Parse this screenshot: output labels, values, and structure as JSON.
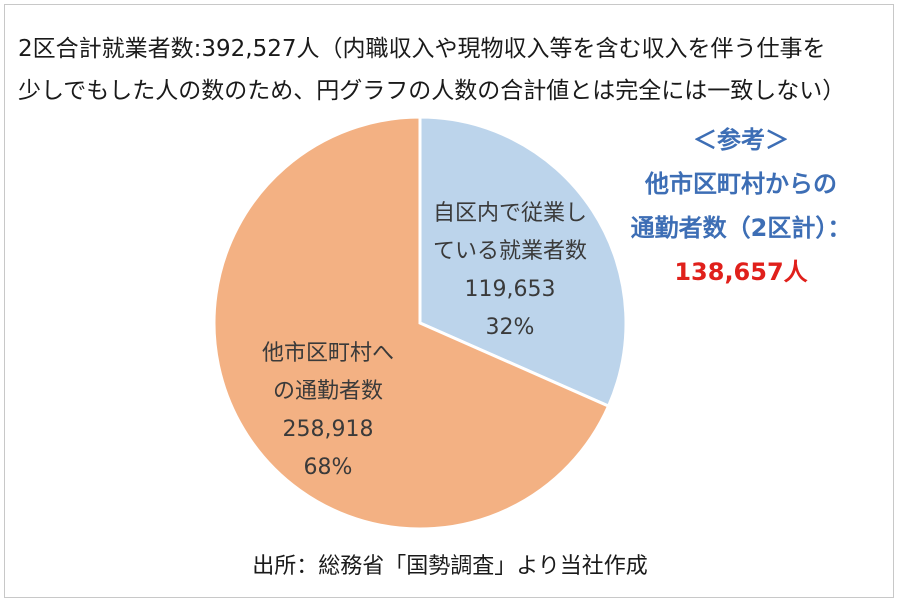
{
  "header": {
    "line1": "2区合計就業者数:392,527人（内職収入や現物収入等を含む収入を伴う仕事を",
    "line2": "少しでもした人の数のため、円グラフの人数の合計値とは完全には一致しない）"
  },
  "chart_data": {
    "type": "pie",
    "start_angle_deg": 0,
    "direction": "clockwise",
    "slices": [
      {
        "label_lines": [
          "自区内で従業し",
          "ている就業者数"
        ],
        "value": 119653,
        "value_label": "119,653",
        "percent_label": "32%",
        "color": "#bcd4eb"
      },
      {
        "label_lines": [
          "他市区町村へ",
          "の通勤者数"
        ],
        "value": 258918,
        "value_label": "258,918",
        "percent_label": "68%",
        "color": "#f3b183"
      }
    ]
  },
  "reference": {
    "heading": "＜参考＞",
    "line1": "他市区町村からの",
    "line2": "通勤者数（2区計）：",
    "total": "138,657人"
  },
  "source": "出所：総務省「国勢調査」より当社作成",
  "colors": {
    "reference_text": "#3d6eb5",
    "reference_total": "#e0201b",
    "slice_border": "#ffffff"
  }
}
